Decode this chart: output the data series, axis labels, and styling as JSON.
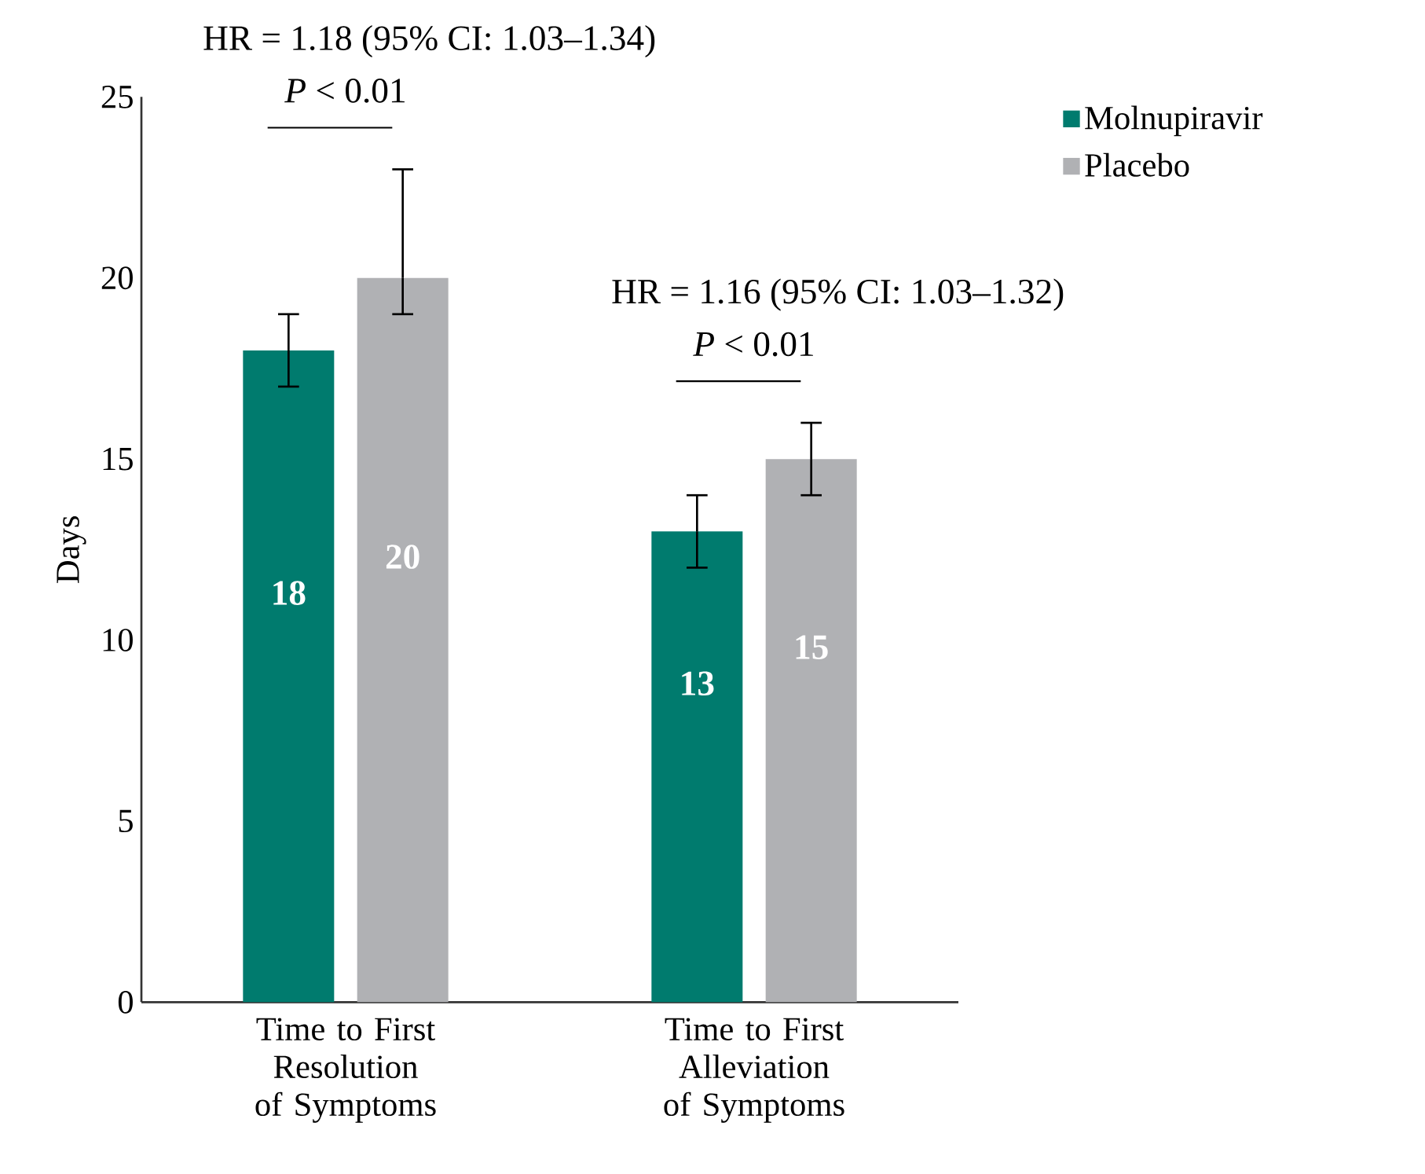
{
  "chart_data": {
    "type": "bar",
    "categories": [
      "Time to First Resolution of Symptoms",
      "Time to First Alleviation of Symptoms"
    ],
    "series": [
      {
        "name": "Molnupiravir",
        "color": "#007b6e",
        "values": [
          18,
          13
        ],
        "errors": [
          [
            17,
            19
          ],
          [
            12,
            14
          ]
        ]
      },
      {
        "name": "Placebo",
        "color": "#b0b1b4",
        "values": [
          20,
          15
        ],
        "errors": [
          [
            19,
            23
          ],
          [
            14,
            16
          ]
        ]
      }
    ],
    "ylabel": "Days",
    "ylim": [
      0,
      25
    ],
    "yticks": [
      0,
      5,
      10,
      15,
      20,
      25
    ],
    "annotations": [
      "HR = 1.18 (95% CI: 1.03–1.34)",
      "*P* < 0.01",
      "HR = 1.16 (95% CI: 1.03–1.32)",
      "*P* < 0.01"
    ],
    "data_labels": true,
    "grid": false,
    "legend": "top right"
  }
}
